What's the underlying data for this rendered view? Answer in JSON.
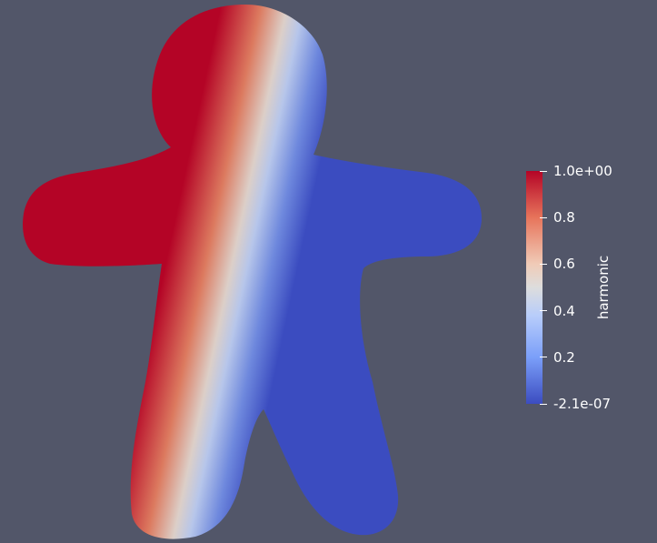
{
  "viewport": {
    "background": "#525669"
  },
  "colorbar": {
    "title": "harmonic",
    "colormap": "Cool to Warm",
    "range": [
      -2.1e-07,
      1.0
    ],
    "ticks": [
      {
        "value": 1.0,
        "label": "1.0e+00"
      },
      {
        "value": 0.8,
        "label": "0.8"
      },
      {
        "value": 0.6,
        "label": "0.6"
      },
      {
        "value": 0.4,
        "label": "0.4"
      },
      {
        "value": 0.2,
        "label": "0.2"
      },
      {
        "value": -2.1e-07,
        "label": "-2.1e-07"
      }
    ],
    "colors": {
      "low": "#3b4cc0",
      "mid": "#dddddd",
      "high": "#b40426"
    }
  }
}
